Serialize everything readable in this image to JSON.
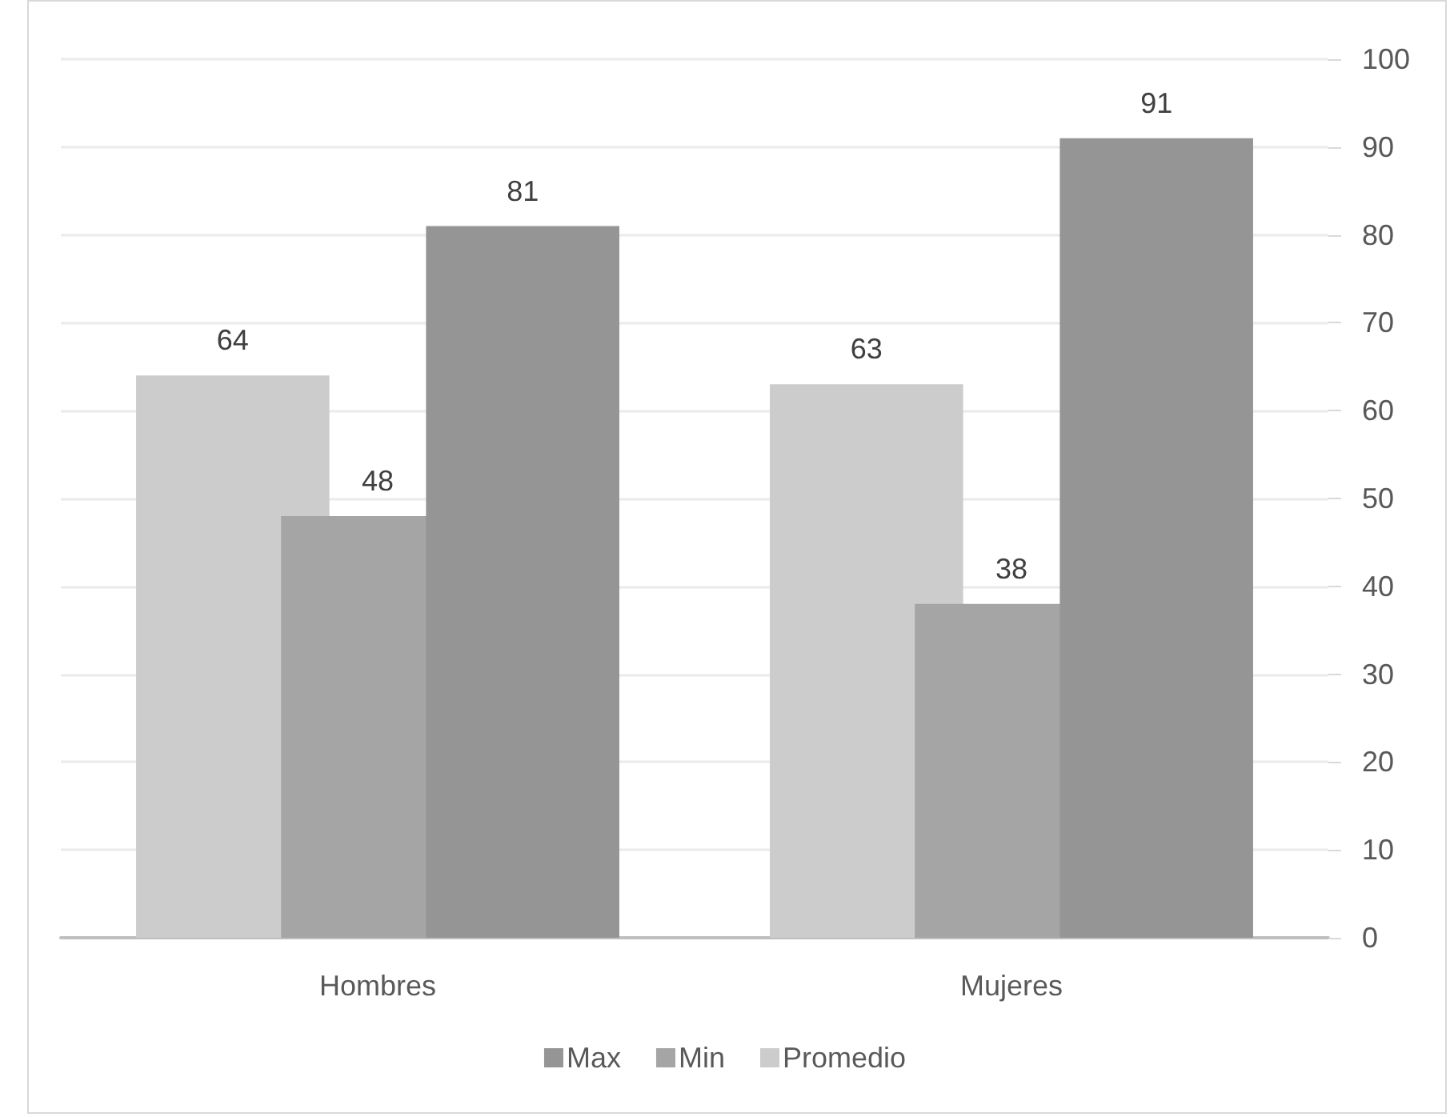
{
  "chart_data": {
    "type": "bar",
    "categories": [
      "Hombres",
      "Mujeres"
    ],
    "series": [
      {
        "name": "Promedio",
        "color": "#cccccc",
        "values": [
          64,
          63
        ]
      },
      {
        "name": "Min",
        "color": "#a5a5a5",
        "values": [
          48,
          38
        ]
      },
      {
        "name": "Max",
        "color": "#959595",
        "values": [
          81,
          91
        ]
      }
    ],
    "ylim": [
      0,
      100
    ],
    "yticks": [
      0,
      10,
      20,
      30,
      40,
      50,
      60,
      70,
      80,
      90,
      100
    ],
    "grid": "y",
    "legend": "bottom",
    "data_labels": true
  }
}
